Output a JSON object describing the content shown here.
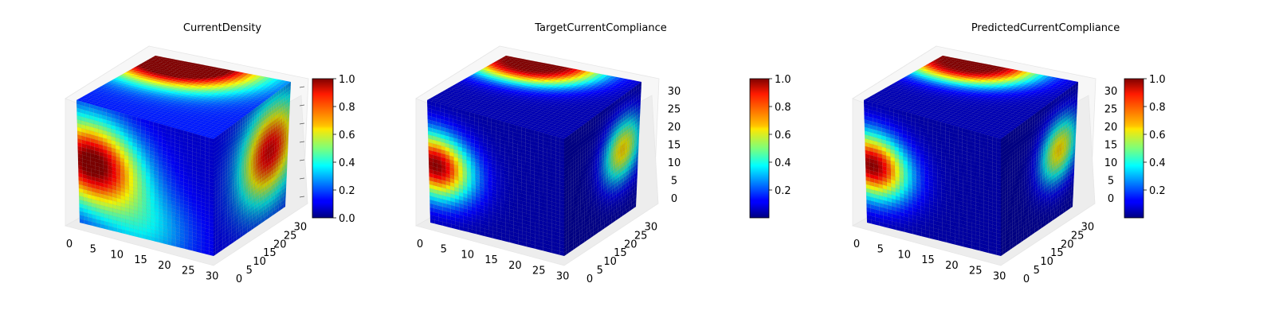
{
  "chart_data": [
    {
      "type": "voxel3d",
      "title": "CurrentDensity",
      "field": "current",
      "axes": {
        "x_ticks": [
          0,
          5,
          10,
          15,
          20,
          25,
          30
        ],
        "y_ticks": [
          0,
          5,
          10,
          15,
          20,
          25,
          30
        ],
        "z_ticks": [],
        "zlim": [
          0,
          32
        ]
      },
      "colorbar": {
        "colormap": "jet",
        "range": [
          0.0,
          1.0
        ],
        "ticks": [
          "0.0",
          "0.2",
          "0.4",
          "0.6",
          "0.8",
          "1.0"
        ]
      }
    },
    {
      "type": "voxel3d",
      "title": "TargetCurrentCompliance",
      "field": "compliance",
      "axes": {
        "x_ticks": [
          0,
          5,
          10,
          15,
          20,
          25,
          30
        ],
        "y_ticks": [
          0,
          5,
          10,
          15,
          20,
          25,
          30
        ],
        "z_ticks": [
          0,
          5,
          10,
          15,
          20,
          25,
          30
        ],
        "zlim": [
          0,
          32
        ]
      },
      "colorbar": {
        "colormap": "jet",
        "range": [
          0.0,
          1.0
        ],
        "ticks": [
          "0.2",
          "0.4",
          "0.6",
          "0.8",
          "1.0"
        ]
      }
    },
    {
      "type": "voxel3d",
      "title": "PredictedCurrentCompliance",
      "field": "compliance",
      "axes": {
        "x_ticks": [
          0,
          5,
          10,
          15,
          20,
          25,
          30
        ],
        "y_ticks": [
          0,
          5,
          10,
          15,
          20,
          25,
          30
        ],
        "z_ticks": [
          0,
          5,
          10,
          15,
          20,
          25,
          30
        ],
        "zlim": [
          0,
          32
        ]
      },
      "colorbar": {
        "colormap": "jet",
        "range": [
          0.0,
          1.0
        ],
        "ticks": [
          "0.2",
          "0.4",
          "0.6",
          "0.8",
          "1.0"
        ]
      }
    }
  ]
}
